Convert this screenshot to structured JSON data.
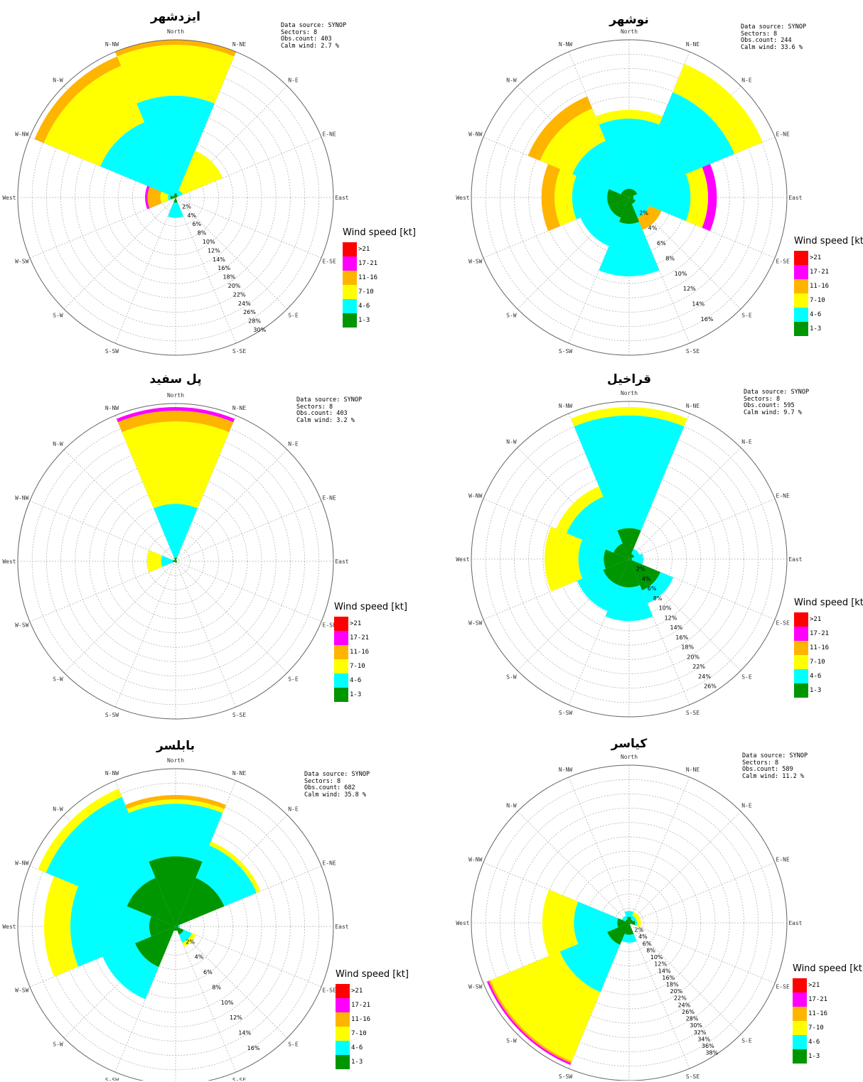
{
  "chart_data": [
    {
      "type": "wind-rose",
      "title": "ایزدشهر",
      "info": [
        "Data source: SYNOP",
        "Sectors: 8",
        "Obs.count: 403",
        "Calm wind: 2.7 %"
      ],
      "directions": [
        "N",
        "NE",
        "E",
        "SE",
        "S",
        "SW",
        "W",
        "NW"
      ],
      "speed_classes": [
        "1-3",
        "4-6",
        "7-10",
        "11-16",
        "17-21",
        ">21"
      ],
      "cumulative_percent": {
        "N": [
          0.8,
          20.0,
          30.0,
          31.0,
          31.0,
          31.0
        ],
        "NE": [
          0.5,
          1.5,
          10.0,
          10.0,
          10.0,
          10.0
        ],
        "E": [
          0,
          0,
          0,
          0,
          0,
          0
        ],
        "SE": [
          0,
          0,
          0,
          0,
          0,
          0
        ],
        "S": [
          1.0,
          4.0,
          4.0,
          4.0,
          4.0,
          4.0
        ],
        "SW": [
          0,
          0,
          0,
          0,
          0,
          0
        ],
        "W": [
          1.0,
          1.5,
          3.0,
          5.5,
          6.0,
          6.0
        ],
        "NW": [
          0.5,
          16.0,
          28.0,
          30.0,
          30.0,
          30.0
        ]
      },
      "radial_ticks": [
        "2%",
        "4%",
        "6%",
        "8%",
        "10%",
        "12%",
        "14%",
        "16%",
        "18%",
        "20%",
        "22%",
        "24%",
        "26%",
        "28%",
        "30%"
      ],
      "rmax": 31
    },
    {
      "type": "wind-rose",
      "title": "نوشهر",
      "info": [
        "Data source: SYNOP",
        "Sectors: 8",
        "Obs.count: 244",
        "Calm wind: 33.6 %"
      ],
      "directions": [
        "N",
        "NE",
        "E",
        "SE",
        "S",
        "SW",
        "W",
        "NW"
      ],
      "speed_classes": [
        "1-3",
        "4-6",
        "7-10",
        "11-16",
        "17-21",
        ">21"
      ],
      "cumulative_percent": {
        "N": [
          1.0,
          9.0,
          10.0,
          10.0,
          10.0,
          10.0
        ],
        "NE": [
          1.0,
          13.0,
          16.5,
          16.5,
          16.5,
          16.5
        ],
        "E": [
          0.5,
          7.0,
          9.0,
          9.0,
          10.0,
          10.0
        ],
        "SE": [
          0.8,
          2.5,
          2.5,
          4.0,
          4.0,
          4.0
        ],
        "S": [
          3.0,
          9.0,
          9.0,
          9.0,
          9.0,
          9.0
        ],
        "SW": [
          2.5,
          6.0,
          6.0,
          6.0,
          6.0,
          6.0
        ],
        "W": [
          2.5,
          6.5,
          8.5,
          10.0,
          10.0,
          10.0
        ],
        "NW": [
          1.0,
          7.0,
          11.0,
          12.5,
          12.5,
          12.5
        ]
      },
      "radial_ticks": [
        "2%",
        "4%",
        "6%",
        "8%",
        "10%",
        "12%",
        "14%",
        "16%"
      ],
      "rmax": 18
    },
    {
      "type": "wind-rose",
      "title": "پل سفید",
      "info": [
        "Data source: SYNOP",
        "Sectors: 8",
        "Obs.count: 403",
        "Calm wind: 3.2 %"
      ],
      "directions": [
        "N",
        "NE",
        "E",
        "SE",
        "S",
        "SW",
        "W",
        "NW"
      ],
      "speed_classes": [
        "1-3",
        "4-6",
        "7-10",
        "11-16",
        "17-21",
        ">21"
      ],
      "cumulative_percent": {
        "N": [
          1.0,
          16.0,
          39.0,
          42.0,
          43.0,
          43.0
        ],
        "NE": [
          0.4,
          0.4,
          0.4,
          0.4,
          0.4,
          0.4
        ],
        "E": [
          0.3,
          0.3,
          0.3,
          0.3,
          0.3,
          0.3
        ],
        "SE": [
          0.5,
          0.5,
          0.5,
          0.5,
          0.5,
          0.5
        ],
        "S": [
          0.4,
          0.4,
          0.4,
          0.4,
          0.4,
          0.4
        ],
        "SW": [
          0.3,
          0.3,
          0.3,
          0.3,
          0.3,
          0.3
        ],
        "W": [
          0.8,
          4.0,
          8.0,
          8.0,
          8.0,
          8.0
        ],
        "NW": [
          0.5,
          0.5,
          0.5,
          0.5,
          0.5,
          0.5
        ]
      },
      "radial_ticks": [],
      "rmax": 44
    },
    {
      "type": "wind-rose",
      "title": "قراخیل",
      "info": [
        "Data source: SYNOP",
        "Sectors: 8",
        "Obs.count: 595",
        "Calm wind: 9.7 %"
      ],
      "directions": [
        "N",
        "NE",
        "E",
        "SE",
        "S",
        "SW",
        "W",
        "NW"
      ],
      "speed_classes": [
        "1-3",
        "4-6",
        "7-10",
        "11-16",
        "17-21",
        ">21"
      ],
      "cumulative_percent": {
        "N": [
          5.5,
          25.5,
          27.0,
          27.0,
          27.0,
          27.0
        ],
        "NE": [
          1.0,
          2.0,
          2.0,
          2.0,
          2.0,
          2.0
        ],
        "E": [
          0.5,
          2.5,
          2.5,
          2.5,
          2.5,
          2.5
        ],
        "SE": [
          6.0,
          8.5,
          8.5,
          8.5,
          8.5,
          8.5
        ],
        "S": [
          5.0,
          11.0,
          11.0,
          11.0,
          11.0,
          11.0
        ],
        "SW": [
          5.0,
          10.0,
          10.0,
          10.0,
          10.0,
          10.0
        ],
        "W": [
          4.5,
          9.0,
          15.0,
          15.0,
          15.0,
          15.0
        ],
        "NW": [
          3.0,
          12.0,
          14.0,
          14.0,
          14.0,
          14.0
        ]
      },
      "radial_ticks": [
        "2%",
        "4%",
        "6%",
        "8%",
        "10%",
        "12%",
        "14%",
        "16%",
        "18%",
        "20%",
        "22%",
        "24%",
        "26%"
      ],
      "rmax": 28
    },
    {
      "type": "wind-rose",
      "title": "بابلسر",
      "info": [
        "Data source: SYNOP",
        "Sectors: 8",
        "Obs.count: 682",
        "Calm wind: 35.8 %"
      ],
      "directions": [
        "N",
        "NE",
        "E",
        "SE",
        "S",
        "SW",
        "W",
        "NW"
      ],
      "speed_classes": [
        "1-3",
        "4-6",
        "7-10",
        "11-16",
        "17-21",
        ">21"
      ],
      "cumulative_percent": {
        "N": [
          8.0,
          14.0,
          14.5,
          15.0,
          15.0,
          15.0
        ],
        "NE": [
          6.0,
          10.0,
          10.5,
          10.5,
          10.5,
          10.5
        ],
        "E": [
          0.3,
          0.5,
          0.5,
          0.5,
          0.5,
          0.5
        ],
        "SE": [
          1.0,
          2.0,
          2.5,
          2.5,
          2.5,
          2.5
        ],
        "S": [
          0.5,
          0.5,
          0.5,
          0.5,
          0.5,
          0.5
        ],
        "SW": [
          5.0,
          9.0,
          9.0,
          9.0,
          9.0,
          9.0
        ],
        "W": [
          3.0,
          12.0,
          15.0,
          15.0,
          15.0,
          15.0
        ],
        "NW": [
          6.0,
          16.0,
          17.0,
          17.0,
          17.0,
          17.0
        ]
      },
      "radial_ticks": [
        "2%",
        "4%",
        "6%",
        "8%",
        "10%",
        "12%",
        "14%",
        "16%"
      ],
      "rmax": 18
    },
    {
      "type": "wind-rose",
      "title": "کیاسر",
      "info": [
        "Data source: SYNOP",
        "Sectors: 8",
        "Obs.count: 589",
        "Calm wind: 11.2 %"
      ],
      "directions": [
        "N",
        "NE",
        "E",
        "SE",
        "S",
        "SW",
        "W",
        "NW"
      ],
      "speed_classes": [
        "1-3",
        "4-6",
        "7-10",
        "11-16",
        "17-21",
        ">21"
      ],
      "cumulative_percent": {
        "N": [
          1.5,
          3.0,
          3.0,
          3.0,
          3.0,
          3.0
        ],
        "NE": [
          1.0,
          2.0,
          3.0,
          3.0,
          3.0,
          3.0
        ],
        "E": [
          1.5,
          2.0,
          3.0,
          3.0,
          3.0,
          3.0
        ],
        "SE": [
          0.5,
          0.5,
          0.5,
          0.5,
          0.5,
          0.5
        ],
        "S": [
          3.0,
          5.0,
          5.0,
          5.0,
          5.0,
          5.0
        ],
        "SW": [
          6.0,
          19.0,
          38.0,
          38.5,
          39.0,
          39.0
        ],
        "W": [
          3.0,
          14.0,
          22.0,
          22.0,
          22.0,
          22.0
        ],
        "NW": [
          1.0,
          2.0,
          2.0,
          2.0,
          2.0,
          2.0
        ]
      },
      "radial_ticks": [
        "2%",
        "4%",
        "6%",
        "8%",
        "10%",
        "12%",
        "14%",
        "16%",
        "18%",
        "20%",
        "22%",
        "24%",
        "26%",
        "28%",
        "30%",
        "32%",
        "34%",
        "36%",
        "38%"
      ],
      "rmax": 40
    }
  ],
  "compass_labels": [
    "North",
    "N-NE",
    "N-E",
    "E-NE",
    "East",
    "E-SE",
    "S-E",
    "S-SE",
    "South",
    "S-SW",
    "S-W",
    "W-SW",
    "West",
    "W-NW",
    "N-W",
    "N-NW"
  ],
  "legend": {
    "title": "Wind speed [kt]",
    "items": [
      {
        "label": ">21",
        "color": "#ff0000"
      },
      {
        "label": "17-21",
        "color": "#ff00ff"
      },
      {
        "label": "11-16",
        "color": "#ffb400"
      },
      {
        "label": "7-10",
        "color": "#ffff00"
      },
      {
        "label": "4-6",
        "color": "#00ffff"
      },
      {
        "label": "1-3",
        "color": "#009600"
      }
    ]
  }
}
